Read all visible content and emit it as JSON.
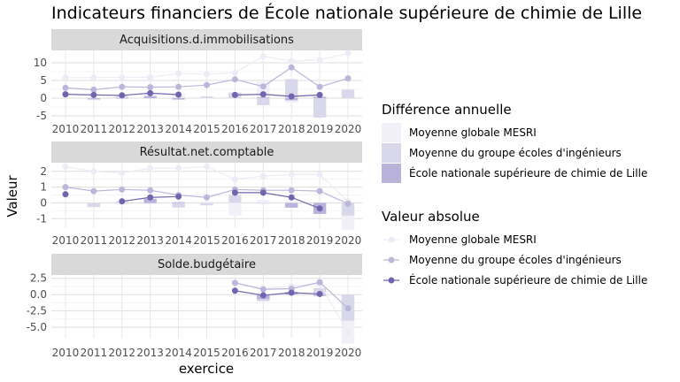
{
  "chart_data": {
    "type": "bar+line",
    "title": "Indicateurs financiers de École nationale supérieure de chimie de Lille",
    "xlabel": "exercice",
    "ylabel": "Valeur",
    "x": [
      "2010",
      "2011",
      "2012",
      "2013",
      "2014",
      "2015",
      "2016",
      "2017",
      "2018",
      "2019",
      "2020"
    ],
    "colors": {
      "Moyenne globale MESRI": "#eeedf6",
      "Moyenne du groupe écoles d'ingénieurs": "#bbb9da",
      "École nationale supérieure de chimie de Lille": "#7265ad"
    },
    "legends": [
      {
        "title": "Différence annuelle",
        "entries": [
          "Moyenne globale MESRI",
          "Moyenne du groupe écoles d'ingénieurs",
          "École nationale supérieure de chimie de Lille"
        ]
      },
      {
        "title": "Valeur absolue",
        "entries": [
          "Moyenne globale MESRI",
          "Moyenne du groupe écoles d'ingénieurs",
          "École nationale supérieure de chimie de Lille"
        ]
      }
    ],
    "panels": [
      {
        "label": "Acquisitions.d.immobilisations",
        "ylim": [
          -6,
          13.5
        ],
        "yticks": [
          -5,
          0,
          5,
          10
        ],
        "ytick_labels": [
          "-5",
          "0",
          "5",
          "10"
        ],
        "lines": [
          {
            "name": "Moyenne globale MESRI",
            "values": [
              5.8,
              5.8,
              5.9,
              5.9,
              7.0,
              6.8,
              7.2,
              11.8,
              10.5,
              10.8,
              12.7
            ]
          },
          {
            "name": "Moyenne du groupe écoles d'ingénieurs",
            "values": [
              2.9,
              2.4,
              3.2,
              3.1,
              3.2,
              3.7,
              5.3,
              3.3,
              8.7,
              3.2,
              5.6
            ]
          },
          {
            "name": "École nationale supérieure de chimie de Lille",
            "values": [
              1.1,
              0.9,
              0.8,
              1.4,
              1.0,
              null,
              0.9,
              1.1,
              0.5,
              0.9,
              null
            ]
          }
        ],
        "bars": [
          {
            "name": "Moyenne globale MESRI",
            "values": [
              null,
              0.0,
              0.1,
              0.0,
              1.1,
              -0.2,
              0.4,
              4.6,
              -1.3,
              0.3,
              1.9
            ]
          },
          {
            "name": "Moyenne du groupe écoles d'ingénieurs",
            "values": [
              null,
              -0.5,
              0.8,
              -0.1,
              0.1,
              0.5,
              1.6,
              -2.0,
              5.4,
              -5.5,
              2.4
            ]
          },
          {
            "name": "École nationale supérieure de chimie de Lille",
            "values": [
              null,
              -0.2,
              -0.1,
              0.6,
              -0.4,
              null,
              null,
              0.2,
              -0.6,
              0.4,
              null
            ]
          }
        ]
      },
      {
        "label": "Résultat.net.comptable",
        "ylim": [
          -1.6,
          2.55
        ],
        "yticks": [
          -1,
          0,
          1,
          2
        ],
        "ytick_labels": [
          "-1",
          "0",
          "1",
          "2"
        ],
        "lines": [
          {
            "name": "Moyenne globale MESRI",
            "values": [
              2.3,
              2.0,
              1.9,
              2.2,
              2.2,
              2.3,
              1.5,
              1.7,
              1.8,
              1.8,
              0.1
            ]
          },
          {
            "name": "Moyenne du groupe écoles d'ingénieurs",
            "values": [
              1.0,
              0.75,
              0.85,
              0.8,
              0.5,
              0.35,
              0.85,
              0.8,
              0.8,
              0.75,
              -0.05
            ]
          },
          {
            "name": "École nationale supérieure de chimie de Lille",
            "values": [
              0.55,
              null,
              0.1,
              0.35,
              0.4,
              null,
              0.65,
              0.65,
              0.35,
              -0.35,
              null
            ]
          }
        ],
        "bars": [
          {
            "name": "Moyenne globale MESRI",
            "values": [
              null,
              -0.3,
              -0.1,
              0.3,
              0.0,
              0.1,
              -0.8,
              0.2,
              0.1,
              0.0,
              -1.7
            ]
          },
          {
            "name": "Moyenne du groupe écoles d'ingénieurs",
            "values": [
              null,
              -0.25,
              0.1,
              -0.05,
              -0.3,
              -0.15,
              0.5,
              -0.05,
              0.0,
              -0.05,
              -0.8
            ]
          },
          {
            "name": "École nationale supérieure de chimie de Lille",
            "values": [
              null,
              null,
              null,
              0.25,
              0.05,
              null,
              null,
              0.0,
              -0.3,
              -0.7,
              null
            ]
          }
        ]
      },
      {
        "label": "Solde.budgétaire",
        "ylim": [
          -6.6,
          3.0
        ],
        "yticks": [
          -5.0,
          -2.5,
          0.0,
          2.5
        ],
        "ytick_labels": [
          "-5.0",
          "-2.5",
          "0.0",
          "2.5"
        ],
        "lines": [
          {
            "name": "Moyenne globale MESRI",
            "values": [
              null,
              null,
              null,
              null,
              null,
              null,
              1.8,
              0.9,
              1.3,
              1.7,
              -5.8
            ]
          },
          {
            "name": "Moyenne du groupe écoles d'ingénieurs",
            "values": [
              null,
              null,
              null,
              null,
              null,
              null,
              1.8,
              0.8,
              0.9,
              1.9,
              -2.1
            ]
          },
          {
            "name": "École nationale supérieure de chimie de Lille",
            "values": [
              null,
              null,
              null,
              null,
              null,
              null,
              0.6,
              -0.1,
              0.3,
              0.1,
              null
            ]
          }
        ],
        "bars": [
          {
            "name": "Moyenne globale MESRI",
            "values": [
              null,
              null,
              null,
              null,
              null,
              null,
              null,
              -0.9,
              0.4,
              0.4,
              -7.5
            ]
          },
          {
            "name": "Moyenne du groupe écoles d'ingénieurs",
            "values": [
              null,
              null,
              null,
              null,
              null,
              null,
              null,
              -1.0,
              0.1,
              1.0,
              -4.0
            ]
          },
          {
            "name": "École nationale supérieure de chimie de Lille",
            "values": [
              null,
              null,
              null,
              null,
              null,
              null,
              null,
              -0.7,
              0.4,
              -0.2,
              null
            ]
          }
        ]
      }
    ]
  }
}
